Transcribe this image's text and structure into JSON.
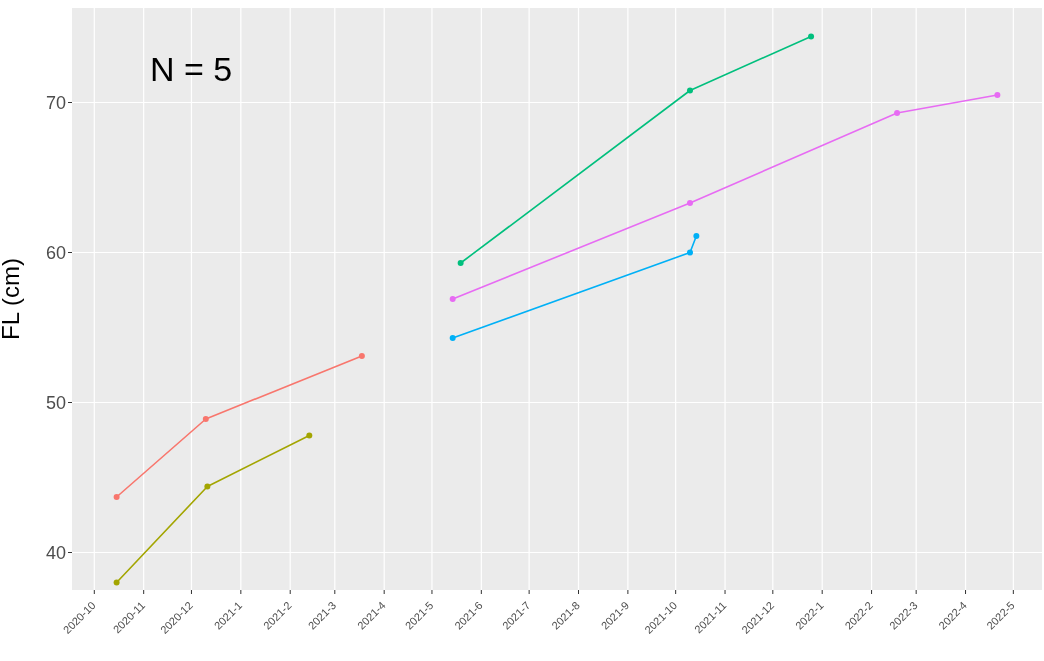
{
  "chart_data": {
    "type": "line",
    "ylabel": "FL (cm)",
    "annotations": [
      "N = 5"
    ],
    "xlim": [
      "2020-09-17",
      "2022-05-19"
    ],
    "xticks": [
      {
        "value": "2020-10",
        "label": "2020-10"
      },
      {
        "value": "2020-11",
        "label": "2020-11"
      },
      {
        "value": "2020-12",
        "label": "2020-12"
      },
      {
        "value": "2021-01",
        "label": "2021-1"
      },
      {
        "value": "2021-02",
        "label": "2021-2"
      },
      {
        "value": "2021-03",
        "label": "2021-3"
      },
      {
        "value": "2021-04",
        "label": "2021-4"
      },
      {
        "value": "2021-05",
        "label": "2021-5"
      },
      {
        "value": "2021-06",
        "label": "2021-6"
      },
      {
        "value": "2021-07",
        "label": "2021-7"
      },
      {
        "value": "2021-08",
        "label": "2021-8"
      },
      {
        "value": "2021-09",
        "label": "2021-9"
      },
      {
        "value": "2021-10",
        "label": "2021-10"
      },
      {
        "value": "2021-11",
        "label": "2021-11"
      },
      {
        "value": "2021-12",
        "label": "2021-12"
      },
      {
        "value": "2022-01",
        "label": "2022-1"
      },
      {
        "value": "2022-02",
        "label": "2022-2"
      },
      {
        "value": "2022-03",
        "label": "2022-3"
      },
      {
        "value": "2022-04",
        "label": "2022-4"
      },
      {
        "value": "2022-05",
        "label": "2022-5"
      }
    ],
    "ylim": [
      37.5,
      76.3
    ],
    "yticks": [
      40,
      50,
      60,
      70
    ],
    "grid": true,
    "marker": "circle",
    "line_style": "solid",
    "series": [
      {
        "color": "#f8766d",
        "x": [
          "2020-10-15",
          "2020-12-10",
          "2021-03-18"
        ],
        "values": [
          43.7,
          48.9,
          53.1
        ]
      },
      {
        "color": "#a3a500",
        "x": [
          "2020-10-15",
          "2020-12-11",
          "2021-02-13"
        ],
        "values": [
          38.0,
          44.4,
          47.8
        ]
      },
      {
        "color": "#00bf7d",
        "x": [
          "2021-05-19",
          "2021-10-10",
          "2021-12-25"
        ],
        "values": [
          59.3,
          70.8,
          74.4
        ]
      },
      {
        "color": "#00b0f6",
        "x": [
          "2021-05-14",
          "2021-10-10",
          "2021-10-14"
        ],
        "values": [
          54.3,
          60.0,
          61.1
        ]
      },
      {
        "color": "#e76bf3",
        "x": [
          "2021-05-14",
          "2021-10-10",
          "2022-02-17",
          "2022-04-21"
        ],
        "values": [
          56.9,
          63.3,
          69.3,
          70.5
        ]
      }
    ]
  }
}
